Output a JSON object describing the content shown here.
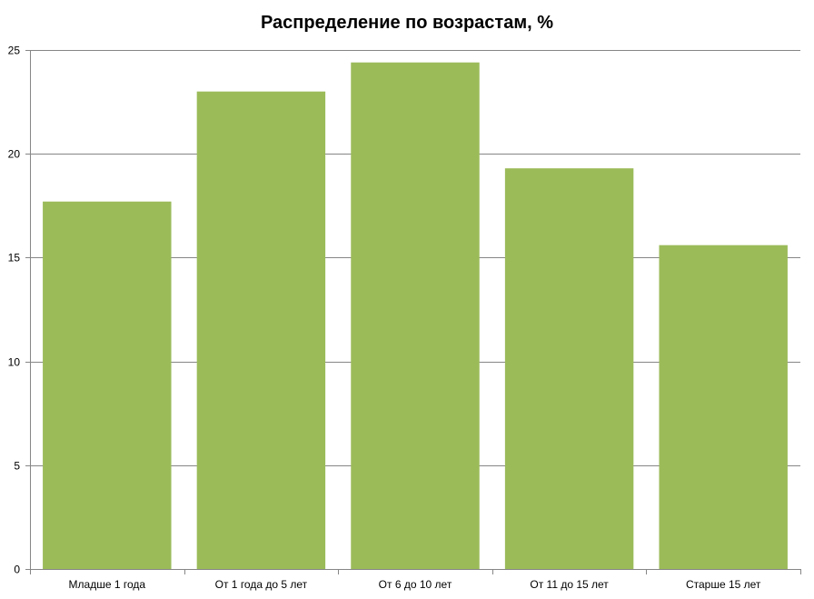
{
  "chart_data": {
    "type": "bar",
    "title": "Распределение по возрастам, %",
    "categories": [
      "Младше 1 года",
      "От 1 года до 5 лет",
      "От 6 до 10 лет",
      "От 11 до 15 лет",
      "Старше 15 лет"
    ],
    "values": [
      17.7,
      23.0,
      24.4,
      19.3,
      15.6
    ],
    "ylim": [
      0,
      25
    ],
    "yticks": [
      0,
      5,
      10,
      15,
      20,
      25
    ],
    "xlabel": "",
    "ylabel": "",
    "grid": true,
    "legend": "none",
    "colors": {
      "bar": "#9bbb59",
      "grid": "#868686",
      "axis": "#868686",
      "text": "#000000"
    }
  }
}
